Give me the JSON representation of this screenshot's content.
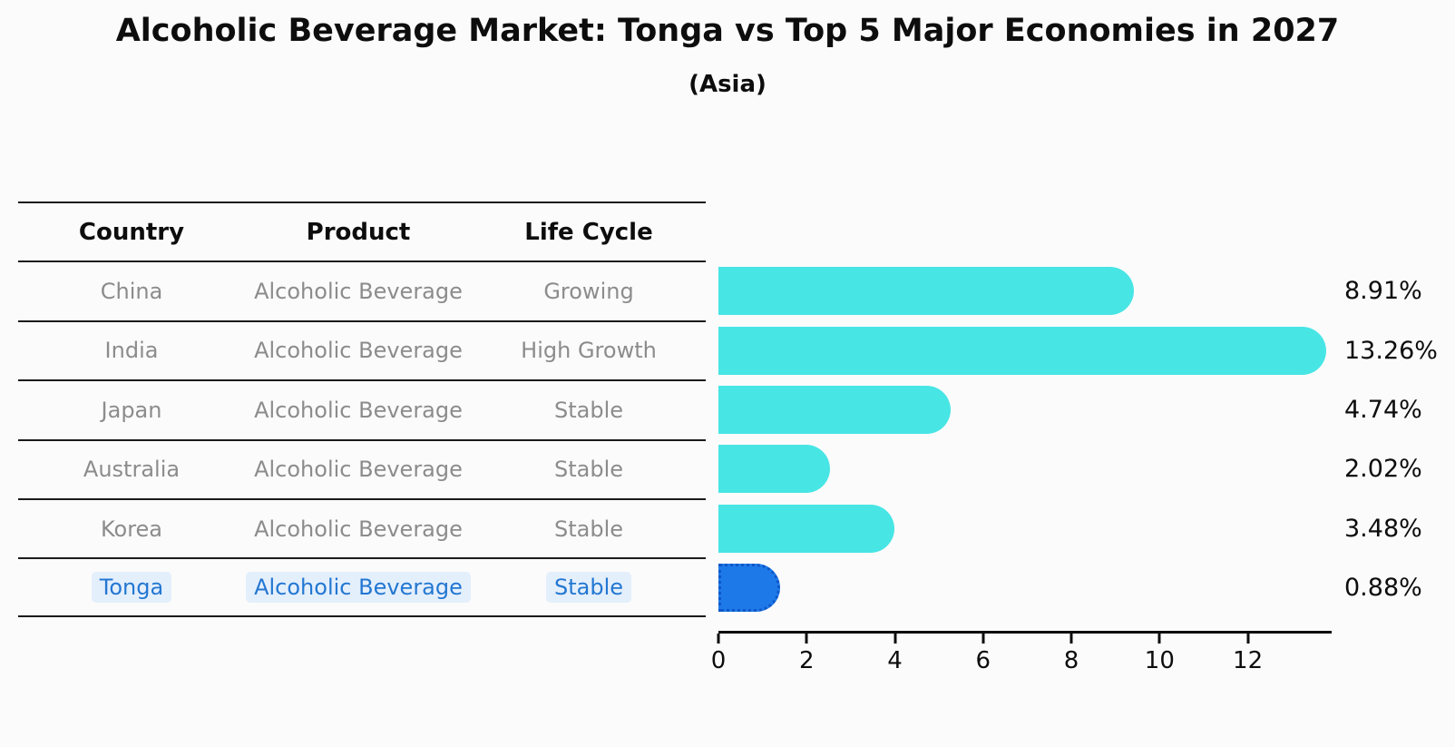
{
  "title": "Alcoholic Beverage Market: Tonga vs Top 5 Major Economies in 2027",
  "subtitle": "(Asia)",
  "table": {
    "columns": [
      "Country",
      "Product",
      "Life Cycle"
    ],
    "rows": [
      {
        "country": "China",
        "product": "Alcoholic Beverage",
        "life_cycle": "Growing",
        "highlighted": false
      },
      {
        "country": "India",
        "product": "Alcoholic Beverage",
        "life_cycle": "High Growth",
        "highlighted": false
      },
      {
        "country": "Japan",
        "product": "Alcoholic Beverage",
        "life_cycle": "Stable",
        "highlighted": false
      },
      {
        "country": "Australia",
        "product": "Alcoholic Beverage",
        "life_cycle": "Stable",
        "highlighted": false
      },
      {
        "country": "Korea",
        "product": "Alcoholic Beverage",
        "life_cycle": "Stable",
        "highlighted": false
      },
      {
        "country": "Tonga",
        "product": "Alcoholic Beverage",
        "life_cycle": "Stable",
        "highlighted": true
      }
    ]
  },
  "chart_data": {
    "type": "bar",
    "orientation": "horizontal",
    "title": "Alcoholic Beverage Market: Tonga vs Top 5 Major Economies in 2027",
    "subtitle": "(Asia)",
    "categories": [
      "China",
      "India",
      "Japan",
      "Australia",
      "Korea",
      "Tonga"
    ],
    "values": [
      8.91,
      13.26,
      4.74,
      2.02,
      3.48,
      0.88
    ],
    "value_labels": [
      "8.91%",
      "13.26%",
      "4.74%",
      "2.02%",
      "3.48%",
      "0.88%"
    ],
    "x_ticks": [
      0,
      2,
      4,
      6,
      8,
      10,
      12
    ],
    "xlim": [
      0,
      13.9
    ],
    "grid": false,
    "legend": "none",
    "highlight_index": 5
  },
  "colors": {
    "background": "#fbfbfb",
    "bar_cyan": "#48e5e5",
    "bar_blue": "#1e79e8",
    "bar_blue_edge": "#0d57c9",
    "highlight_text": "#2377d2",
    "cell_text": "#8c8c8c",
    "text": "#0d0d0d",
    "line": "#1a1a1a"
  }
}
